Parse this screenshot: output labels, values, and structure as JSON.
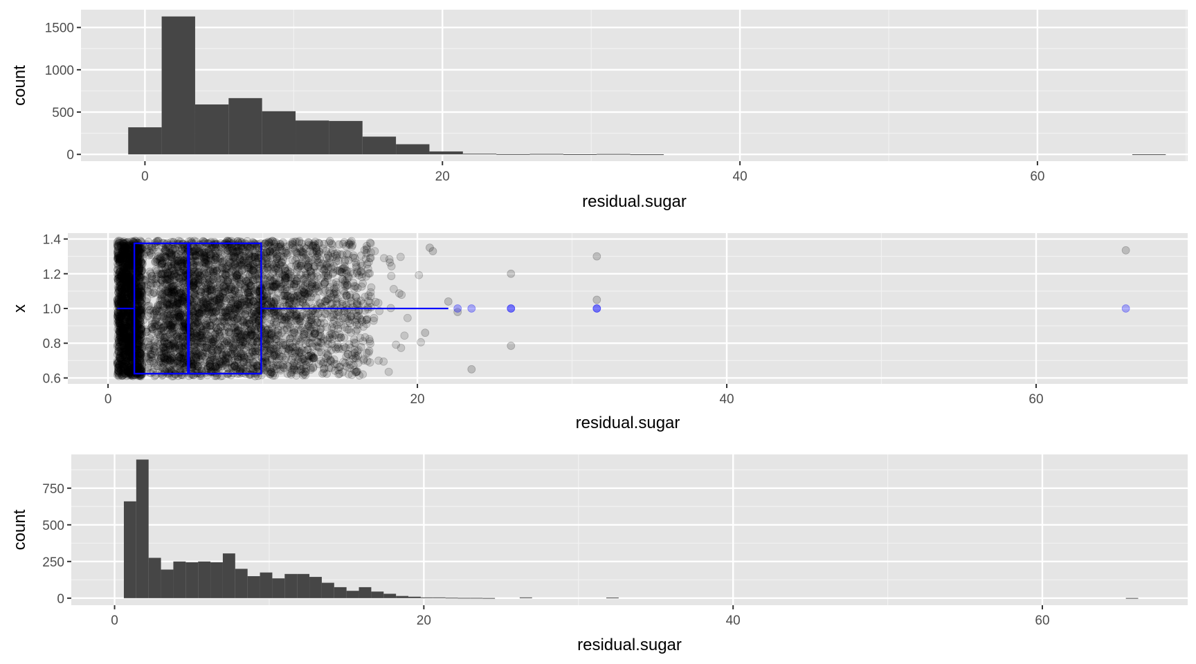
{
  "colors": {
    "panel_bg": "#e5e5e5",
    "grid_major": "#ffffff",
    "grid_minor": "#f2f2f2",
    "bar_fill": "#464646",
    "box_line": "#0000ff",
    "point_black": "#000000",
    "point_blue": "#0000ff"
  },
  "chart_data": [
    {
      "type": "bar",
      "title": "",
      "xlabel": "residual.sugar",
      "ylabel": "count",
      "xlim": [
        -4.3,
        70.1
      ],
      "ylim": [
        -80,
        1710
      ],
      "x_ticks": [
        0,
        20,
        40,
        60
      ],
      "x_tick_labels": [
        "0",
        "20",
        "40",
        "60"
      ],
      "y_ticks": [
        0,
        500,
        1000,
        1500
      ],
      "y_tick_labels": [
        "0",
        "500",
        "1000",
        "1500"
      ],
      "bin_width": 2.25,
      "bin_start": -1.125,
      "counts": [
        320,
        1630,
        590,
        665,
        510,
        400,
        395,
        210,
        120,
        35,
        8,
        3,
        6,
        2,
        5,
        1,
        0,
        0,
        0,
        0,
        0,
        0,
        0,
        0,
        0,
        0,
        0,
        0,
        0,
        0,
        1
      ]
    },
    {
      "type": "box_jitter",
      "title": "",
      "xlabel": "residual.sugar",
      "ylabel": "x",
      "xlim": [
        -2.6,
        69.8
      ],
      "ylim": [
        0.566,
        1.434
      ],
      "x_ticks": [
        0,
        20,
        40,
        60
      ],
      "x_tick_labels": [
        "0",
        "20",
        "40",
        "60"
      ],
      "y_ticks": [
        0.6,
        0.8,
        1.0,
        1.2,
        1.4
      ],
      "y_tick_labels": [
        "0.6",
        "0.8",
        "1.0",
        "1.2",
        "1.4"
      ],
      "box": {
        "x_center": 1.0,
        "half_width": 0.375,
        "whisker_low": 0.6,
        "q1": 1.7,
        "median": 5.2,
        "q3": 9.9,
        "whisker_high": 22.0
      },
      "outliers": [
        22.6,
        23.5,
        26.05,
        26.05,
        31.6,
        31.6,
        65.8
      ],
      "jitter_points": 4898,
      "extra_points": [
        {
          "x": 22.0,
          "y": 1.04
        },
        {
          "x": 22.6,
          "y": 0.98
        },
        {
          "x": 26.05,
          "y": 1.2
        },
        {
          "x": 26.05,
          "y": 0.785
        },
        {
          "x": 23.5,
          "y": 0.65
        },
        {
          "x": 31.6,
          "y": 1.3
        },
        {
          "x": 31.6,
          "y": 1.05
        },
        {
          "x": 65.8,
          "y": 1.335
        },
        {
          "x": 20.8,
          "y": 1.35
        },
        {
          "x": 21.0,
          "y": 1.33
        },
        {
          "x": 20.5,
          "y": 0.86
        }
      ]
    },
    {
      "type": "bar",
      "title": "",
      "xlabel": "residual.sugar",
      "ylabel": "count",
      "xlim": [
        -2.8,
        69.4
      ],
      "ylim": [
        -48,
        980
      ],
      "x_ticks": [
        0,
        20,
        40,
        60
      ],
      "x_tick_labels": [
        "0",
        "20",
        "40",
        "60"
      ],
      "y_ticks": [
        0,
        250,
        500,
        750
      ],
      "y_tick_labels": [
        "0",
        "250",
        "500",
        "750"
      ],
      "bin_width": 0.8,
      "bin_start": 0.6,
      "counts": [
        660,
        945,
        275,
        195,
        250,
        245,
        250,
        245,
        305,
        200,
        150,
        175,
        135,
        165,
        165,
        145,
        105,
        75,
        50,
        75,
        45,
        30,
        15,
        10,
        5,
        5,
        3,
        2,
        2,
        1,
        0,
        0,
        5,
        0,
        0,
        0,
        0,
        0,
        0,
        4,
        0,
        0,
        0,
        0,
        0,
        0,
        0,
        0,
        0,
        0,
        0,
        0,
        0,
        0,
        0,
        0,
        0,
        0,
        0,
        0,
        0,
        0,
        0,
        0,
        0,
        0,
        0,
        0,
        0,
        0,
        0,
        0,
        0,
        0,
        0,
        0,
        0,
        0,
        0,
        0,
        0,
        1
      ]
    }
  ]
}
